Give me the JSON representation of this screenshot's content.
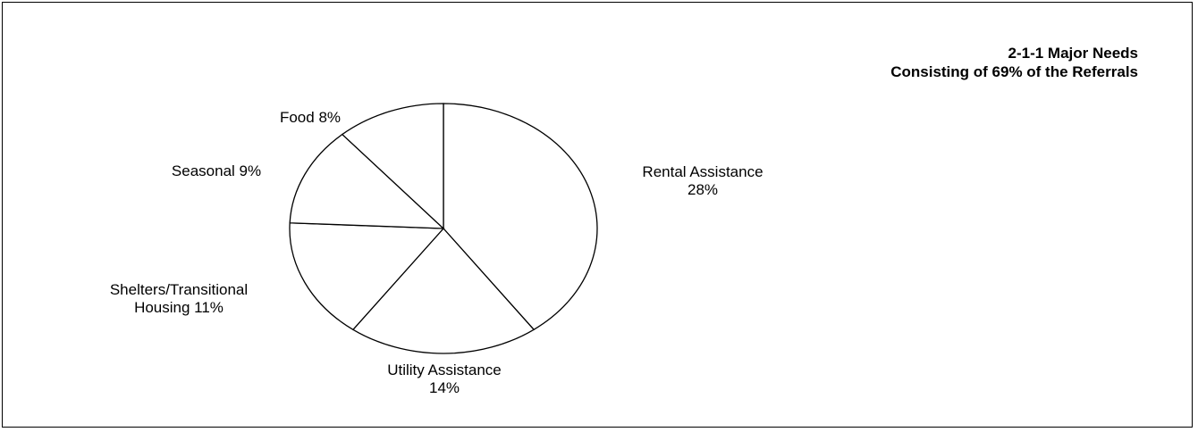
{
  "chart_data": {
    "type": "pie",
    "title": "2-1-1 Major Needs",
    "subtitle": "Consisting of 69% of the Referrals",
    "slices": [
      {
        "label": "Rental Assistance",
        "value": 28,
        "display": [
          "Rental Assistance",
          "28%"
        ]
      },
      {
        "label": "Utility Assistance",
        "value": 14,
        "display": [
          "Utility Assistance",
          "14%"
        ]
      },
      {
        "label": "Shelters/Transitional Housing",
        "value": 11,
        "display": [
          "Shelters/Transitional",
          "Housing 11%"
        ]
      },
      {
        "label": "Seasonal",
        "value": 9,
        "display": [
          "Seasonal 9%"
        ]
      },
      {
        "label": "Food",
        "value": 8,
        "display": [
          "Food 8%"
        ]
      }
    ],
    "fill_color": "#ffffff",
    "stroke_color": "#000000"
  }
}
